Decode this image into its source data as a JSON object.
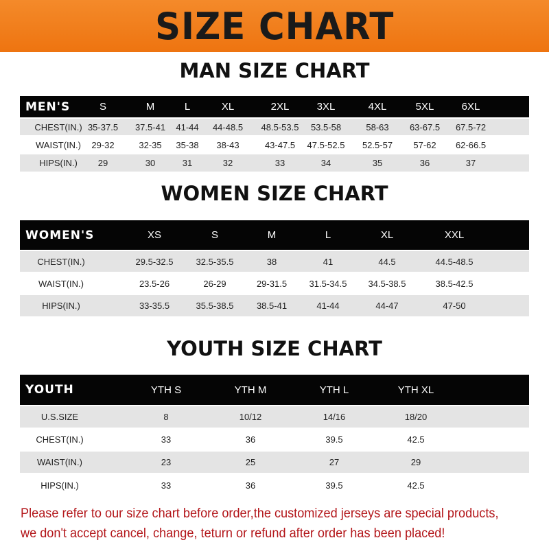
{
  "banner_title": "SIZE CHART",
  "men": {
    "title": "MAN SIZE CHART",
    "header_label": "MEN'S",
    "sizes": [
      "S",
      "M",
      "L",
      "XL",
      "2XL",
      "3XL",
      "4XL",
      "5XL",
      "6XL"
    ],
    "rows": [
      {
        "label": "CHEST(IN.)",
        "values": [
          "35-37.5",
          "37.5-41",
          "41-44",
          "44-48.5",
          "48.5-53.5",
          "53.5-58",
          "58-63",
          "63-67.5",
          "67.5-72"
        ]
      },
      {
        "label": "WAIST(IN.)",
        "values": [
          "29-32",
          "32-35",
          "35-38",
          "38-43",
          "43-47.5",
          "47.5-52.5",
          "52.5-57",
          "57-62",
          "62-66.5"
        ]
      },
      {
        "label": "HIPS(IN.)",
        "values": [
          "29",
          "30",
          "31",
          "32",
          "33",
          "34",
          "35",
          "36",
          "37"
        ]
      }
    ]
  },
  "women": {
    "title": "WOMEN SIZE CHART",
    "header_label": "WOMEN'S",
    "sizes": [
      "XS",
      "S",
      "M",
      "L",
      "XL",
      "XXL"
    ],
    "rows": [
      {
        "label": "CHEST(IN.)",
        "values": [
          "29.5-32.5",
          "32.5-35.5",
          "38",
          "41",
          "44.5",
          "44.5-48.5"
        ]
      },
      {
        "label": "WAIST(IN.)",
        "values": [
          "23.5-26",
          "26-29",
          "29-31.5",
          "31.5-34.5",
          "34.5-38.5",
          "38.5-42.5"
        ]
      },
      {
        "label": "HIPS(IN.)",
        "values": [
          "33-35.5",
          "35.5-38.5",
          "38.5-41",
          "41-44",
          "44-47",
          "47-50"
        ]
      }
    ]
  },
  "youth": {
    "title": "YOUTH SIZE CHART",
    "header_label": "YOUTH",
    "sizes": [
      "YTH S",
      "YTH M",
      "YTH L",
      "YTH XL"
    ],
    "rows": [
      {
        "label": "U.S.SIZE",
        "values": [
          "8",
          "10/12",
          "14/16",
          "18/20"
        ]
      },
      {
        "label": "CHEST(IN.)",
        "values": [
          "33",
          "36",
          "39.5",
          "42.5"
        ]
      },
      {
        "label": "WAIST(IN.)",
        "values": [
          "23",
          "25",
          "27",
          "29"
        ]
      },
      {
        "label": "HIPS(IN.)",
        "values": [
          "33",
          "36",
          "39.5",
          "42.5"
        ]
      }
    ]
  },
  "note": {
    "line1": "Please refer to our size chart before order,the customized jerseys are special products,",
    "line2": "we don't accept cancel, change, teturn or refund after order has been placed!"
  },
  "colors": {
    "banner": "#f07e1c",
    "header_row": "#050505",
    "stripe": "#e4e4e4",
    "note": "#b3161a"
  }
}
